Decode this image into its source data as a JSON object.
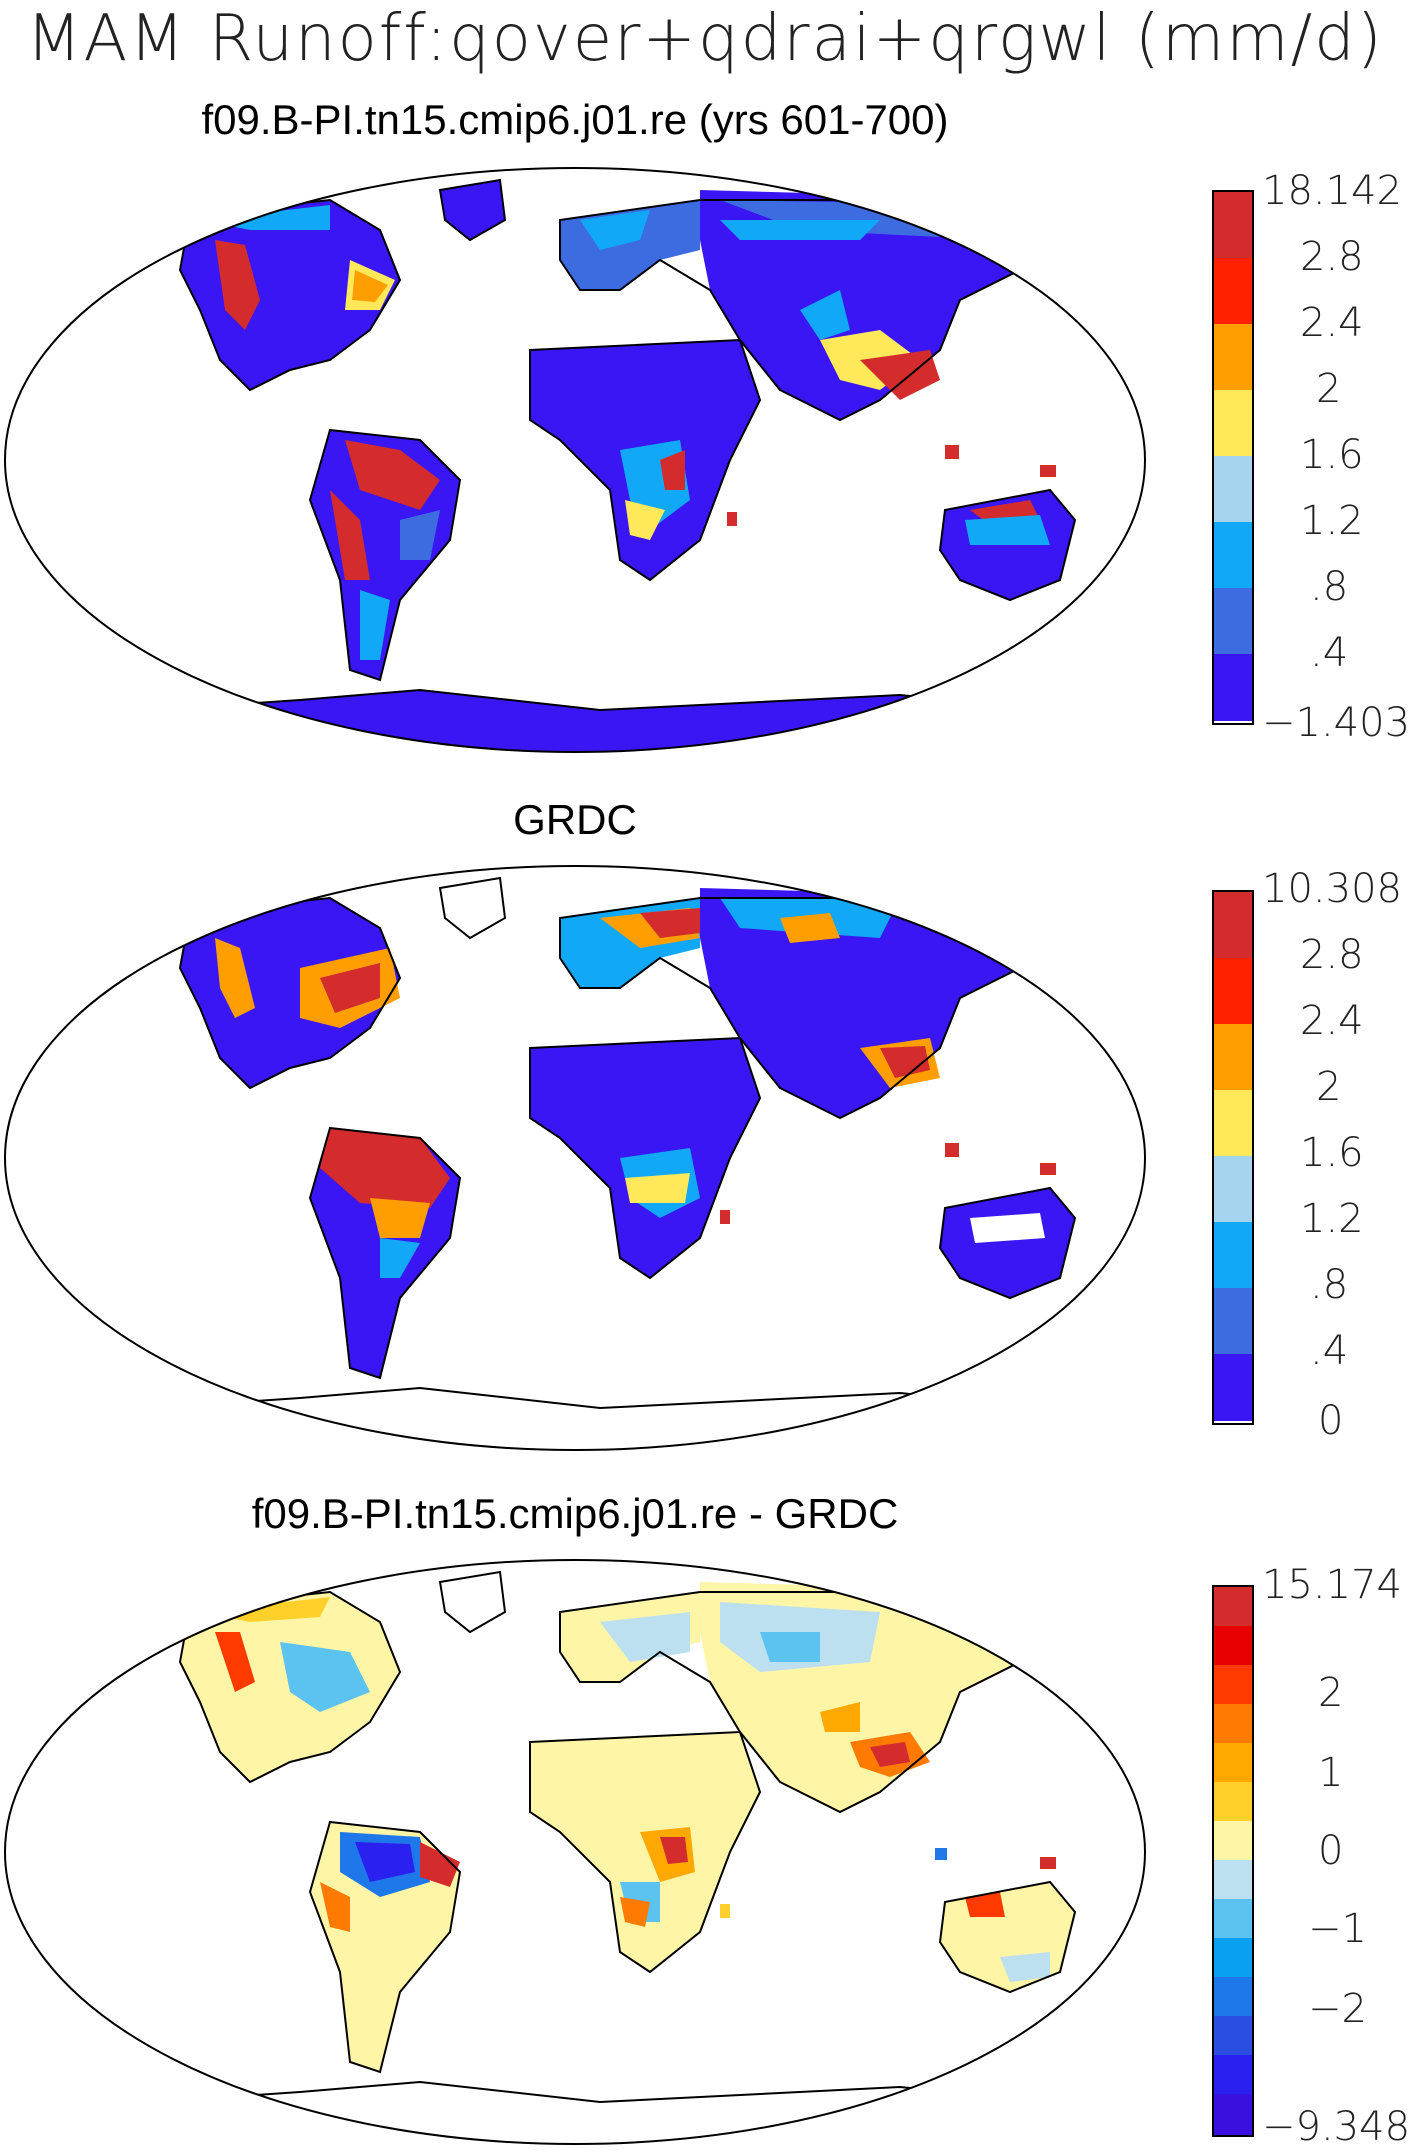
{
  "title": "MAM Runoff:qover+qdrai+qrgwl (mm/d)",
  "panels": [
    {
      "title": "f09.B-PI.tn15.cmip6.j01.re (yrs 601-700)",
      "colorbar_colors": [
        "#d42c2c",
        "#ff2000",
        "#ff9e00",
        "#ffe85a",
        "#a6d3ee",
        "#12a8f8",
        "#3d6be0",
        "#3a16f4"
      ],
      "colorbar_labels": [
        "18.142",
        "2.8",
        "2.4",
        "2",
        "1.6",
        "1.2",
        ".8",
        ".4",
        "−1.403"
      ]
    },
    {
      "title": "GRDC",
      "colorbar_colors": [
        "#d42c2c",
        "#ff2000",
        "#ff9e00",
        "#ffe85a",
        "#a6d3ee",
        "#12a8f8",
        "#3d6be0",
        "#3a16f4"
      ],
      "colorbar_labels": [
        "10.308",
        "2.8",
        "2.4",
        "2",
        "1.6",
        "1.2",
        ".8",
        ".4",
        "0"
      ]
    },
    {
      "title": "f09.B-PI.tn15.cmip6.j01.re - GRDC",
      "colorbar_colors": [
        "#d42c2c",
        "#e60000",
        "#ff3a00",
        "#ff7a00",
        "#ffa800",
        "#ffd02a",
        "#fff5a6",
        "#bde0f0",
        "#5cc2f0",
        "#0aa0f2",
        "#1e78ea",
        "#2a4ee2",
        "#2a20f0",
        "#3a10e0"
      ],
      "colorbar_labels": [
        "15.174",
        "2",
        "1",
        "0",
        "−1",
        "−2",
        "−9.348"
      ]
    }
  ]
}
